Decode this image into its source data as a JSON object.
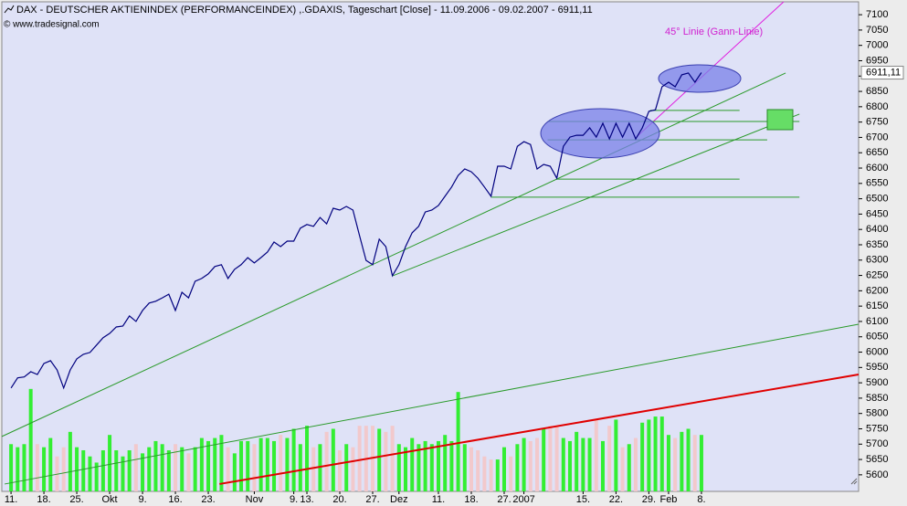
{
  "chart_data": {
    "type": "line",
    "title": "DAX - DEUTSCHER AKTIENINDEX (PERFORMANCEINDEX) ,.GDAXIS, Tageschart [Close] - 11.09.2006 - 09.02.2007 - 6911,11",
    "subtitle": "© www.tradesignal.com",
    "annotation": "45° Linie (Gann-Linie)",
    "color": "#00007f",
    "categories": [
      "11.",
      null,
      null,
      null,
      null,
      "18.",
      null,
      null,
      null,
      null,
      "25.",
      null,
      null,
      null,
      null,
      "Okt",
      null,
      null,
      null,
      null,
      "9.",
      null,
      null,
      null,
      null,
      "16.",
      null,
      null,
      null,
      null,
      "23.",
      null,
      null,
      null,
      null,
      null,
      null,
      "Nov",
      null,
      null,
      null,
      null,
      null,
      "9.",
      null,
      "13.",
      null,
      null,
      null,
      null,
      "20.",
      null,
      null,
      null,
      null,
      "27.",
      null,
      null,
      null,
      "Dez",
      null,
      null,
      null,
      null,
      null,
      "11.",
      null,
      null,
      null,
      null,
      "18.",
      null,
      null,
      null,
      null,
      "27.",
      null,
      null,
      "2007",
      null,
      null,
      null,
      null,
      null,
      null,
      null,
      null,
      "15.",
      null,
      null,
      null,
      null,
      "22.",
      null,
      null,
      null,
      null,
      "29.",
      null,
      null,
      "Feb",
      null,
      null,
      null,
      null,
      "8."
    ],
    "values": [
      5883,
      5916,
      5919,
      5936,
      5927,
      5963,
      5972,
      5942,
      5883,
      5942,
      5978,
      5993,
      5999,
      6023,
      6047,
      6061,
      6082,
      6085,
      6118,
      6100,
      6136,
      6160,
      6166,
      6177,
      6189,
      6136,
      6195,
      6177,
      6231,
      6240,
      6255,
      6279,
      6285,
      6240,
      6270,
      6285,
      6308,
      6291,
      6308,
      6326,
      6359,
      6344,
      6362,
      6362,
      6404,
      6416,
      6410,
      6439,
      6418,
      6469,
      6463,
      6475,
      6463,
      6380,
      6299,
      6285,
      6368,
      6344,
      6249,
      6285,
      6344,
      6389,
      6410,
      6457,
      6463,
      6478,
      6508,
      6538,
      6576,
      6597,
      6588,
      6567,
      6538,
      6508,
      6606,
      6606,
      6597,
      6671,
      6686,
      6677,
      6597,
      6612,
      6606,
      6567,
      6671,
      6701,
      6707,
      6707,
      6731,
      6701,
      6746,
      6695,
      6746,
      6701,
      6746,
      6695,
      6731,
      6785,
      6790,
      6865,
      6880,
      6865,
      6904,
      6910,
      6880,
      6911.11
    ],
    "volume": {
      "up_color": "#33ee33",
      "down_color": "#f2c9cc",
      "values": [
        5700,
        5690,
        5700,
        5880,
        5700,
        5690,
        5720,
        5660,
        5690,
        5740,
        5690,
        5680,
        5660,
        5640,
        5680,
        5730,
        5680,
        5660,
        5680,
        5700,
        5670,
        5690,
        5710,
        5700,
        5680,
        5700,
        5690,
        5670,
        5690,
        5720,
        5710,
        5720,
        5730,
        5690,
        5670,
        5710,
        5710,
        5700,
        5720,
        5720,
        5710,
        5730,
        5720,
        5750,
        5700,
        5760,
        5690,
        5700,
        5740,
        5750,
        5680,
        5700,
        5690,
        5760,
        5760,
        5760,
        5750,
        5740,
        5760,
        5700,
        5690,
        5720,
        5700,
        5710,
        5700,
        5710,
        5730,
        5710,
        5870,
        5700,
        5690,
        5680,
        5660,
        5650,
        5650,
        5690,
        5660,
        5700,
        5720,
        5710,
        5720,
        5750,
        5760,
        5760,
        5720,
        5710,
        5740,
        5720,
        5720,
        5780,
        5710,
        5760,
        5780,
        5690,
        5700,
        5720,
        5770,
        5780,
        5790,
        5790,
        5730,
        5720,
        5740,
        5750,
        5730,
        5730
      ]
    },
    "last_price": {
      "value": 6911.11,
      "label": "6911,11"
    },
    "trendlines": [
      {
        "x": [
          -1.39,
          117.8
        ],
        "values": [
          5725,
          6910
        ],
        "color": "#2a9a2a"
      },
      {
        "x": [
          58.06,
          119.9
        ],
        "values": [
          6249,
          6776
        ],
        "color": "#2a9a2a"
      },
      {
        "x": [
          -0.97,
          128.9
        ],
        "values": [
          5570,
          6091
        ],
        "color": "#2a9a2a"
      },
      {
        "x": [
          31.7,
          128.9
        ],
        "values": [
          5570,
          5927
        ],
        "color": "#e00000"
      },
      {
        "x": [
          95.1,
          117.5
        ],
        "values": [
          6701,
          7142
        ],
        "color": "#e020e0"
      }
    ],
    "levels": [
      {
        "x": [
          73,
          119.9
        ],
        "value": 6505
      },
      {
        "x": [
          83,
          110.8
        ],
        "value": 6564
      },
      {
        "x": [
          81.6,
          115
        ],
        "value": 6692
      },
      {
        "x": [
          81.6,
          119.9
        ],
        "value": 6752
      },
      {
        "x": [
          97.2,
          110.8
        ],
        "value": 6788
      }
    ],
    "level_color": "#2a9a2a",
    "xlim": [
      -1.4,
      128.9
    ],
    "ylim": [
      5546,
      7142
    ],
    "yticks": [
      5600,
      5650,
      5700,
      5750,
      5800,
      5850,
      5900,
      5950,
      6000,
      6050,
      6100,
      6150,
      6200,
      6250,
      6300,
      6350,
      6400,
      6450,
      6500,
      6550,
      6600,
      6650,
      6700,
      6750,
      6800,
      6850,
      6900,
      6950,
      7000,
      7050,
      7100
    ]
  }
}
